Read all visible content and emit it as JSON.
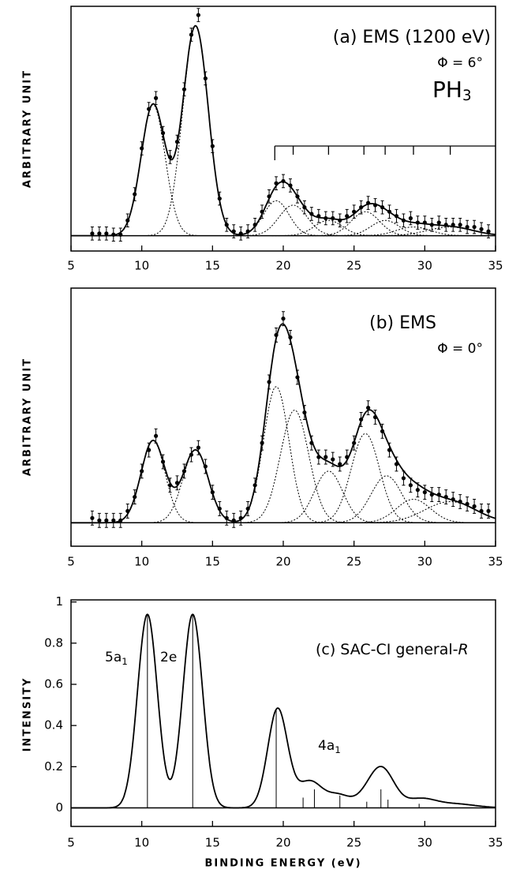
{
  "chart_data": [
    {
      "type": "errorbar",
      "title": "(a) EMS (1200 eV)",
      "annotations": [
        "Φ = 6°"
      ],
      "molecule": {
        "text": "PH",
        "subscript": "3"
      },
      "ylabel": "ARBITRARY UNIT",
      "xlim": [
        5,
        35
      ],
      "xticks": [
        5,
        10,
        15,
        20,
        25,
        30,
        35
      ],
      "ylim": [
        -7,
        105
      ],
      "x": [
        6.5,
        7,
        7.5,
        8,
        8.5,
        9,
        9.5,
        10,
        10.5,
        11,
        11.5,
        12,
        12.5,
        13,
        13.5,
        14,
        14.5,
        15,
        15.5,
        16,
        16.5,
        17,
        17.5,
        18,
        18.5,
        19,
        19.5,
        20,
        20.5,
        21,
        21.5,
        22,
        22.5,
        23,
        23.5,
        24,
        24.5,
        25,
        25.5,
        26,
        26.5,
        27,
        27.5,
        28,
        28.5,
        29,
        29.5,
        30,
        30.5,
        31,
        31.5,
        32,
        32.5,
        33,
        33.5,
        34,
        34.5
      ],
      "values": [
        1,
        1,
        1,
        0.5,
        0.5,
        7,
        19,
        40,
        58,
        63,
        47,
        36,
        43,
        67,
        92,
        101,
        72,
        41,
        17,
        5,
        2,
        1,
        2,
        5,
        11,
        18,
        24,
        25,
        23,
        18,
        13,
        10,
        9,
        8,
        8,
        7,
        9,
        11,
        13,
        15,
        14,
        13,
        11,
        9,
        7,
        8,
        6,
        6,
        5,
        6,
        5,
        5,
        5,
        4,
        4,
        3,
        2
      ],
      "error": 3,
      "color": "#000000",
      "components": [
        {
          "center": 10.8,
          "height": 60,
          "width": 0.85
        },
        {
          "center": 13.8,
          "height": 96,
          "width": 0.9
        },
        {
          "center": 19.5,
          "height": 16,
          "width": 0.9
        },
        {
          "center": 20.7,
          "height": 14,
          "width": 1.0
        },
        {
          "center": 23.2,
          "height": 7,
          "width": 1.0
        },
        {
          "center": 25.8,
          "height": 11,
          "width": 1.0
        },
        {
          "center": 27.2,
          "height": 7,
          "width": 1.0
        },
        {
          "center": 29.2,
          "height": 4,
          "width": 1.2
        },
        {
          "center": 31.8,
          "height": 4,
          "width": 1.6
        }
      ],
      "assignment_ticks": [
        19.4,
        20.7,
        23.2,
        25.7,
        27.2,
        29.2,
        31.8
      ]
    },
    {
      "type": "errorbar",
      "title": "(b) EMS",
      "annotations": [
        "Φ = 0°"
      ],
      "ylabel": "ARBITRARY UNIT",
      "xlim": [
        5,
        35
      ],
      "xticks": [
        5,
        10,
        15,
        20,
        25,
        30,
        35
      ],
      "ylim": [
        -10,
        100
      ],
      "x": [
        6.5,
        7,
        7.5,
        8,
        8.5,
        9,
        9.5,
        10,
        10.5,
        11,
        11.5,
        12,
        12.5,
        13,
        13.5,
        14,
        14.5,
        15,
        15.5,
        16,
        16.5,
        17,
        17.5,
        18,
        18.5,
        19,
        19.5,
        20,
        20.5,
        21,
        21.5,
        22,
        22.5,
        23,
        23.5,
        24,
        24.5,
        25,
        25.5,
        26,
        26.5,
        27,
        27.5,
        28,
        28.5,
        29,
        29.5,
        30,
        30.5,
        31,
        31.5,
        32,
        32.5,
        33,
        33.5,
        34,
        34.5
      ],
      "values": [
        2,
        1,
        1,
        1,
        1,
        5,
        11,
        22,
        31,
        37,
        26,
        16,
        17,
        22,
        29,
        32,
        24,
        13,
        6,
        2,
        1,
        2,
        6,
        16,
        34,
        60,
        80,
        87,
        79,
        62,
        47,
        34,
        28,
        28,
        27,
        25,
        28,
        34,
        44,
        49,
        45,
        39,
        31,
        25,
        19,
        16,
        14,
        13,
        12,
        12,
        11,
        10,
        9,
        8,
        7,
        5,
        5
      ],
      "error": 3,
      "color": "#000000",
      "components": [
        {
          "center": 10.8,
          "height": 35,
          "width": 0.85
        },
        {
          "center": 13.8,
          "height": 31,
          "width": 0.9
        },
        {
          "center": 19.5,
          "height": 58,
          "width": 0.9
        },
        {
          "center": 20.8,
          "height": 48,
          "width": 1.0
        },
        {
          "center": 23.2,
          "height": 22,
          "width": 1.0
        },
        {
          "center": 25.8,
          "height": 38,
          "width": 1.0
        },
        {
          "center": 27.3,
          "height": 20,
          "width": 1.1
        },
        {
          "center": 29.2,
          "height": 10,
          "width": 1.2
        },
        {
          "center": 31.8,
          "height": 9,
          "width": 1.8
        }
      ]
    },
    {
      "type": "line",
      "title": "(c) SAC-CI general-",
      "title_italic": "R",
      "annotations": [
        {
          "text": "5a",
          "subscript": "1"
        },
        {
          "text": "2e"
        },
        {
          "text": "4a",
          "subscript": "1"
        }
      ],
      "ylabel": "INTENSITY",
      "xlabel": "BINDING ENERGY (eV)",
      "xlim": [
        5,
        35
      ],
      "xticks": [
        5,
        10,
        15,
        20,
        25,
        30,
        35
      ],
      "ylim": [
        -0.09,
        1.01
      ],
      "yticks": [
        0,
        0.2,
        0.4,
        0.6,
        0.8,
        1
      ],
      "color": "#000000",
      "components": [
        {
          "center": 10.4,
          "height": 0.94,
          "width": 0.7
        },
        {
          "center": 13.6,
          "height": 0.94,
          "width": 0.7
        },
        {
          "center": 19.6,
          "height": 0.48,
          "width": 0.7
        },
        {
          "center": 21.4,
          "height": 0.05,
          "width": 0.8
        },
        {
          "center": 22.1,
          "height": 0.09,
          "width": 0.8
        },
        {
          "center": 23.9,
          "height": 0.06,
          "width": 0.8
        },
        {
          "center": 25.9,
          "height": 0.05,
          "width": 0.8
        },
        {
          "center": 26.9,
          "height": 0.15,
          "width": 0.8
        },
        {
          "center": 27.6,
          "height": 0.04,
          "width": 0.8
        },
        {
          "center": 29.7,
          "height": 0.04,
          "width": 1.0
        },
        {
          "center": 32.0,
          "height": 0.02,
          "width": 1.5
        }
      ],
      "sticks": {
        "x": [
          10.4,
          13.6,
          19.5,
          21.4,
          22.2,
          24.0,
          25.9,
          26.9,
          27.4,
          29.6
        ],
        "values": [
          0.94,
          0.94,
          0.48,
          0.05,
          0.09,
          0.06,
          0.03,
          0.09,
          0.04,
          0.02
        ]
      }
    }
  ]
}
